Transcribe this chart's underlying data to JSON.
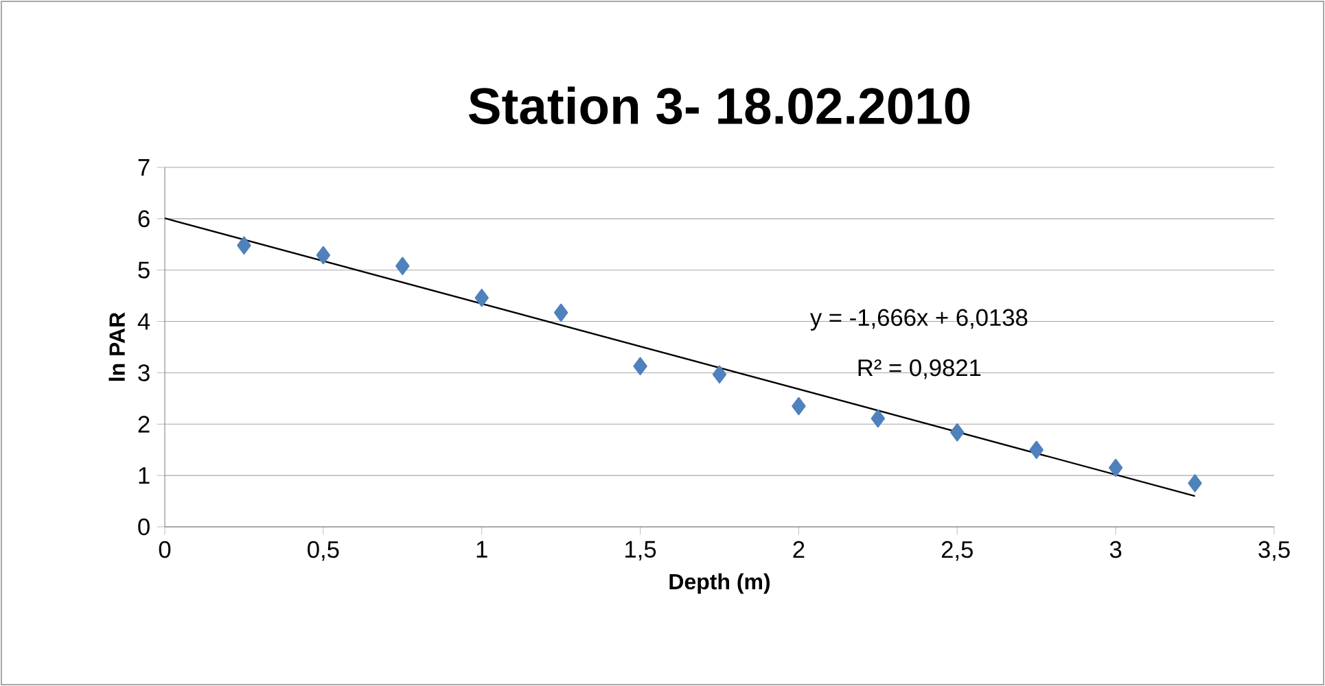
{
  "chart_data": {
    "type": "scatter",
    "title": "Station 3- 18.02.2010",
    "xlabel": "Depth (m)",
    "ylabel": "ln PAR",
    "series": [
      {
        "color": "#4f81bd",
        "marker": "diamond",
        "x": [
          0.25,
          0.5,
          0.75,
          1.0,
          1.25,
          1.5,
          1.75,
          2.0,
          2.25,
          2.5,
          2.75,
          3.0,
          3.25
        ],
        "values": [
          5.48,
          5.29,
          5.08,
          4.46,
          4.17,
          3.13,
          2.97,
          2.35,
          2.11,
          1.84,
          1.5,
          1.15,
          0.85
        ]
      },
      {
        "type": "line",
        "color": "#000000",
        "marker": "none",
        "x": [
          0,
          3.25
        ],
        "values": [
          6.01,
          0.6
        ]
      }
    ],
    "annotations": [
      "y = -1,666x + 6,0138",
      "R² = 0,9821"
    ],
    "xlim": [
      0,
      3.5
    ],
    "ylim": [
      0,
      7
    ],
    "xticks": [
      0,
      {
        "value": 0.5,
        "label": "0,5"
      },
      1,
      {
        "value": 1.5,
        "label": "1,5"
      },
      2,
      {
        "value": 2.5,
        "label": "2,5"
      },
      3,
      {
        "value": 3.5,
        "label": "3,5"
      }
    ],
    "yticks": [
      0,
      1,
      2,
      3,
      4,
      5,
      6,
      7
    ],
    "grid": "y"
  }
}
